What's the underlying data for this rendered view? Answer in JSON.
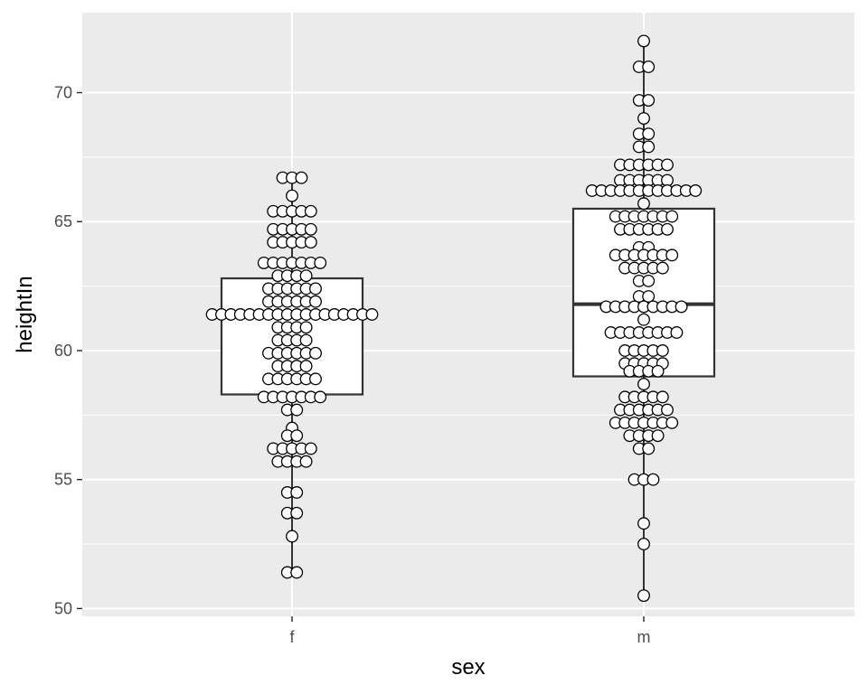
{
  "chart_data": {
    "type": "boxplot",
    "xlabel": "sex",
    "ylabel": "heightIn",
    "categories": [
      "f",
      "m"
    ],
    "ylim": [
      49.7,
      73.1
    ],
    "yticks": [
      50,
      55,
      60,
      65,
      70
    ],
    "grid": true,
    "colors": {
      "panel": "#ebebeb",
      "grid_major": "#ffffff",
      "box_fill": "#ffffff",
      "box_line": "#333333",
      "dot_fill": "#ffffff",
      "dot_line": "#000000"
    },
    "boxes": [
      {
        "category": "f",
        "q1": 58.3,
        "median": 61.4,
        "q3": 62.8,
        "whisker_low": 51.4,
        "whisker_high": 66.7
      },
      {
        "category": "m",
        "q1": 59.0,
        "median": 61.8,
        "q3": 65.5,
        "whisker_low": 50.5,
        "whisker_high": 72.0
      }
    ],
    "dot_rows": [
      {
        "category": "f",
        "y": 66.7,
        "count": 3
      },
      {
        "category": "f",
        "y": 66.0,
        "count": 1
      },
      {
        "category": "f",
        "y": 65.4,
        "count": 5
      },
      {
        "category": "f",
        "y": 64.7,
        "count": 5
      },
      {
        "category": "f",
        "y": 64.2,
        "count": 5
      },
      {
        "category": "f",
        "y": 63.4,
        "count": 7
      },
      {
        "category": "f",
        "y": 62.9,
        "count": 4
      },
      {
        "category": "f",
        "y": 62.4,
        "count": 6
      },
      {
        "category": "f",
        "y": 61.9,
        "count": 6
      },
      {
        "category": "f",
        "y": 61.4,
        "count": 18
      },
      {
        "category": "f",
        "y": 60.9,
        "count": 4
      },
      {
        "category": "f",
        "y": 60.4,
        "count": 4
      },
      {
        "category": "f",
        "y": 59.9,
        "count": 6
      },
      {
        "category": "f",
        "y": 59.4,
        "count": 4
      },
      {
        "category": "f",
        "y": 58.9,
        "count": 6
      },
      {
        "category": "f",
        "y": 58.2,
        "count": 7
      },
      {
        "category": "f",
        "y": 57.7,
        "count": 2
      },
      {
        "category": "f",
        "y": 57.0,
        "count": 1
      },
      {
        "category": "f",
        "y": 56.7,
        "count": 2
      },
      {
        "category": "f",
        "y": 56.2,
        "count": 5
      },
      {
        "category": "f",
        "y": 55.7,
        "count": 4
      },
      {
        "category": "f",
        "y": 54.5,
        "count": 2
      },
      {
        "category": "f",
        "y": 53.7,
        "count": 2
      },
      {
        "category": "f",
        "y": 52.8,
        "count": 1
      },
      {
        "category": "f",
        "y": 51.4,
        "count": 2
      },
      {
        "category": "m",
        "y": 72.0,
        "count": 1
      },
      {
        "category": "m",
        "y": 71.0,
        "count": 2
      },
      {
        "category": "m",
        "y": 69.7,
        "count": 2
      },
      {
        "category": "m",
        "y": 69.0,
        "count": 1
      },
      {
        "category": "m",
        "y": 68.4,
        "count": 2
      },
      {
        "category": "m",
        "y": 67.9,
        "count": 2
      },
      {
        "category": "m",
        "y": 67.2,
        "count": 6
      },
      {
        "category": "m",
        "y": 66.6,
        "count": 6
      },
      {
        "category": "m",
        "y": 66.2,
        "count": 12
      },
      {
        "category": "m",
        "y": 65.7,
        "count": 1
      },
      {
        "category": "m",
        "y": 65.2,
        "count": 7
      },
      {
        "category": "m",
        "y": 64.7,
        "count": 6
      },
      {
        "category": "m",
        "y": 64.0,
        "count": 2
      },
      {
        "category": "m",
        "y": 63.7,
        "count": 7
      },
      {
        "category": "m",
        "y": 63.2,
        "count": 5
      },
      {
        "category": "m",
        "y": 62.7,
        "count": 2
      },
      {
        "category": "m",
        "y": 62.1,
        "count": 2
      },
      {
        "category": "m",
        "y": 61.7,
        "count": 9
      },
      {
        "category": "m",
        "y": 61.2,
        "count": 1
      },
      {
        "category": "m",
        "y": 60.7,
        "count": 8
      },
      {
        "category": "m",
        "y": 60.0,
        "count": 5
      },
      {
        "category": "m",
        "y": 59.5,
        "count": 5
      },
      {
        "category": "m",
        "y": 59.2,
        "count": 4
      },
      {
        "category": "m",
        "y": 58.7,
        "count": 1
      },
      {
        "category": "m",
        "y": 58.2,
        "count": 5
      },
      {
        "category": "m",
        "y": 57.7,
        "count": 6
      },
      {
        "category": "m",
        "y": 57.2,
        "count": 7
      },
      {
        "category": "m",
        "y": 56.7,
        "count": 4
      },
      {
        "category": "m",
        "y": 56.2,
        "count": 2
      },
      {
        "category": "m",
        "y": 55.0,
        "count": 3
      },
      {
        "category": "m",
        "y": 53.3,
        "count": 1
      },
      {
        "category": "m",
        "y": 52.5,
        "count": 1
      },
      {
        "category": "m",
        "y": 50.5,
        "count": 1
      }
    ]
  }
}
